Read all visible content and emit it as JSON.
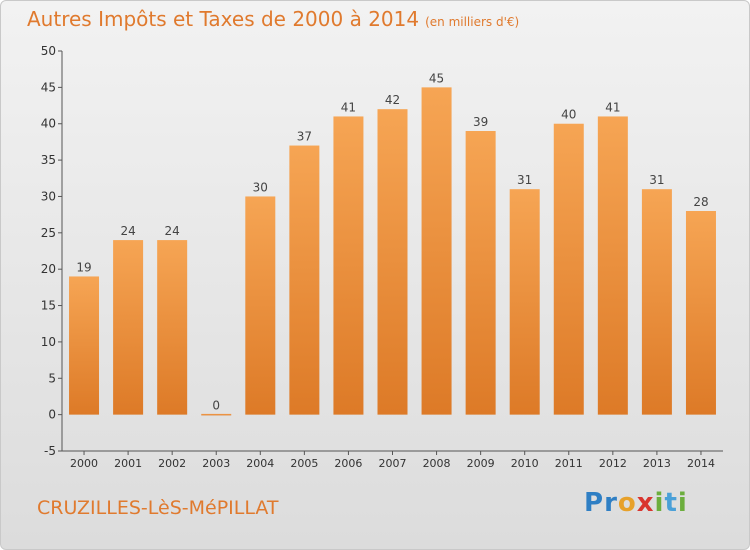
{
  "title": "Autres Impôts et Taxes de 2000 à 2014",
  "title_unit": "(en milliers d'€)",
  "commune": "CRUZILLES-LèS-MéPILLAT",
  "logo": {
    "letters": [
      "P",
      "r",
      "o",
      "x",
      "i",
      "t",
      "i"
    ],
    "colors": [
      "#2f7fc4",
      "#2f7fc4",
      "#e7a12a",
      "#d9352f",
      "#6cae3d",
      "#4aa0d8",
      "#6cae3d"
    ]
  },
  "colors": {
    "bar_top": "#f6a554",
    "bar_bottom": "#dd7a27",
    "title": "#e07a2e",
    "axis": "#555555"
  },
  "chart_data": {
    "type": "bar",
    "title": "Autres Impôts et Taxes de 2000 à 2014",
    "categories": [
      "2000",
      "2001",
      "2002",
      "2003",
      "2004",
      "2005",
      "2006",
      "2007",
      "2008",
      "2009",
      "2010",
      "2011",
      "2012",
      "2013",
      "2014"
    ],
    "values": [
      19,
      24,
      24,
      0,
      30,
      37,
      41,
      42,
      45,
      39,
      31,
      40,
      41,
      31,
      28
    ],
    "ylim": [
      -5,
      50
    ],
    "yticks": [
      -5,
      0,
      5,
      10,
      15,
      20,
      25,
      30,
      35,
      40,
      45,
      50
    ],
    "grid": false,
    "data_labels": true
  }
}
